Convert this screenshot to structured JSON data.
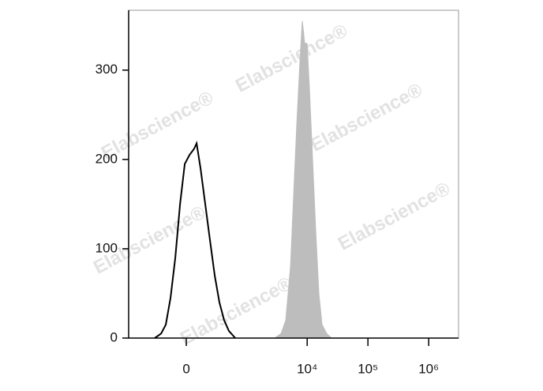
{
  "chart_data": {
    "type": "histogram-overlay",
    "xscale": "asinh",
    "xlim": [
      -900,
      3100000
    ],
    "ylim": [
      0,
      367
    ],
    "xticks": [
      0,
      {
        "value": 10000,
        "label": "10⁴"
      },
      {
        "value": 100000,
        "label": "10⁵"
      },
      {
        "value": 1000000,
        "label": "10⁶"
      }
    ],
    "yticks": [
      0,
      100,
      200,
      300
    ],
    "watermark": "Elabscience®",
    "series": [
      {
        "color": "#bdbdbd",
        "fill": true,
        "x": [
          2915,
          3710,
          4435,
          5310,
          5985,
          6745,
          7605,
          8315,
          9100,
          9955,
          10885,
          12270,
          13830,
          15580,
          17570,
          21010,
          25130
        ],
        "values": [
          0,
          5,
          20,
          80,
          160,
          240,
          310,
          355,
          330,
          330,
          280,
          200,
          120,
          50,
          15,
          5,
          0
        ]
      },
      {
        "color": "#000000",
        "fill": false,
        "x": [
          -308,
          -227,
          -176,
          -130,
          -88,
          -49,
          -12,
          25,
          62,
          82,
          116,
          160,
          209,
          266,
          330,
          405,
          494,
          640
        ],
        "values": [
          0,
          5,
          15,
          45,
          90,
          150,
          195,
          205,
          212,
          218,
          190,
          150,
          110,
          70,
          40,
          20,
          8,
          0
        ]
      }
    ]
  }
}
